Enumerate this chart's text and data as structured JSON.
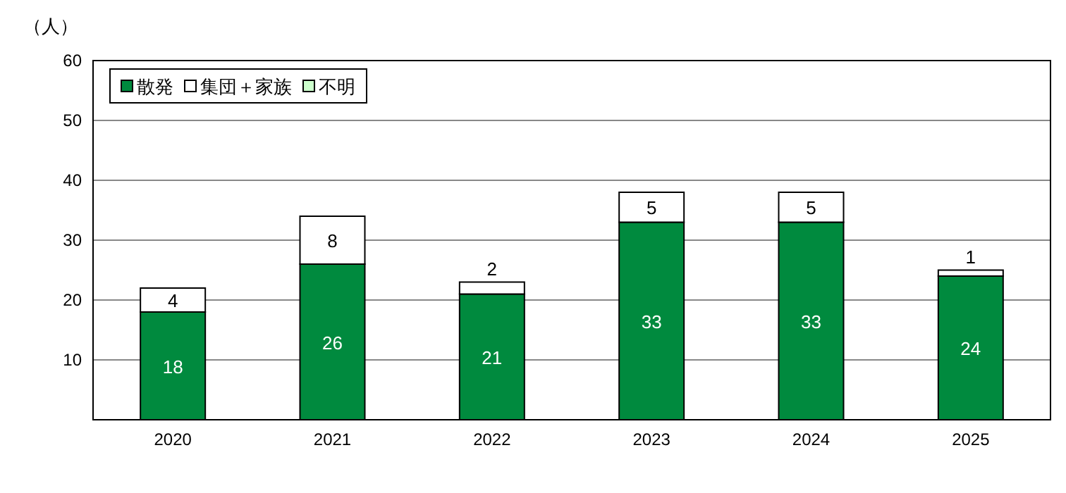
{
  "chart_data": {
    "type": "bar",
    "stacked": true,
    "ylabel": "（人）",
    "categories": [
      "2020",
      "2021",
      "2022",
      "2023",
      "2024",
      "2025"
    ],
    "series": [
      {
        "name": "散発",
        "color": "#008a3e",
        "values": [
          18,
          26,
          21,
          33,
          33,
          24
        ],
        "value_labels": [
          "18",
          "26",
          "21",
          "33",
          "33",
          "24"
        ]
      },
      {
        "name": "集団＋家族",
        "color": "#ffffff",
        "values": [
          4,
          8,
          2,
          5,
          5,
          1
        ],
        "value_labels": [
          "4",
          "8",
          "2",
          "5",
          "5",
          "1"
        ]
      },
      {
        "name": "不明",
        "color": "#ccffcc",
        "values": [
          0,
          0,
          0,
          0,
          0,
          0
        ],
        "value_labels": [
          null,
          null,
          null,
          null,
          null,
          null
        ]
      }
    ],
    "ylim": [
      0,
      60
    ],
    "yticks": [
      10,
      20,
      30,
      40,
      50,
      60
    ],
    "grid": "y",
    "legend": "top left"
  }
}
